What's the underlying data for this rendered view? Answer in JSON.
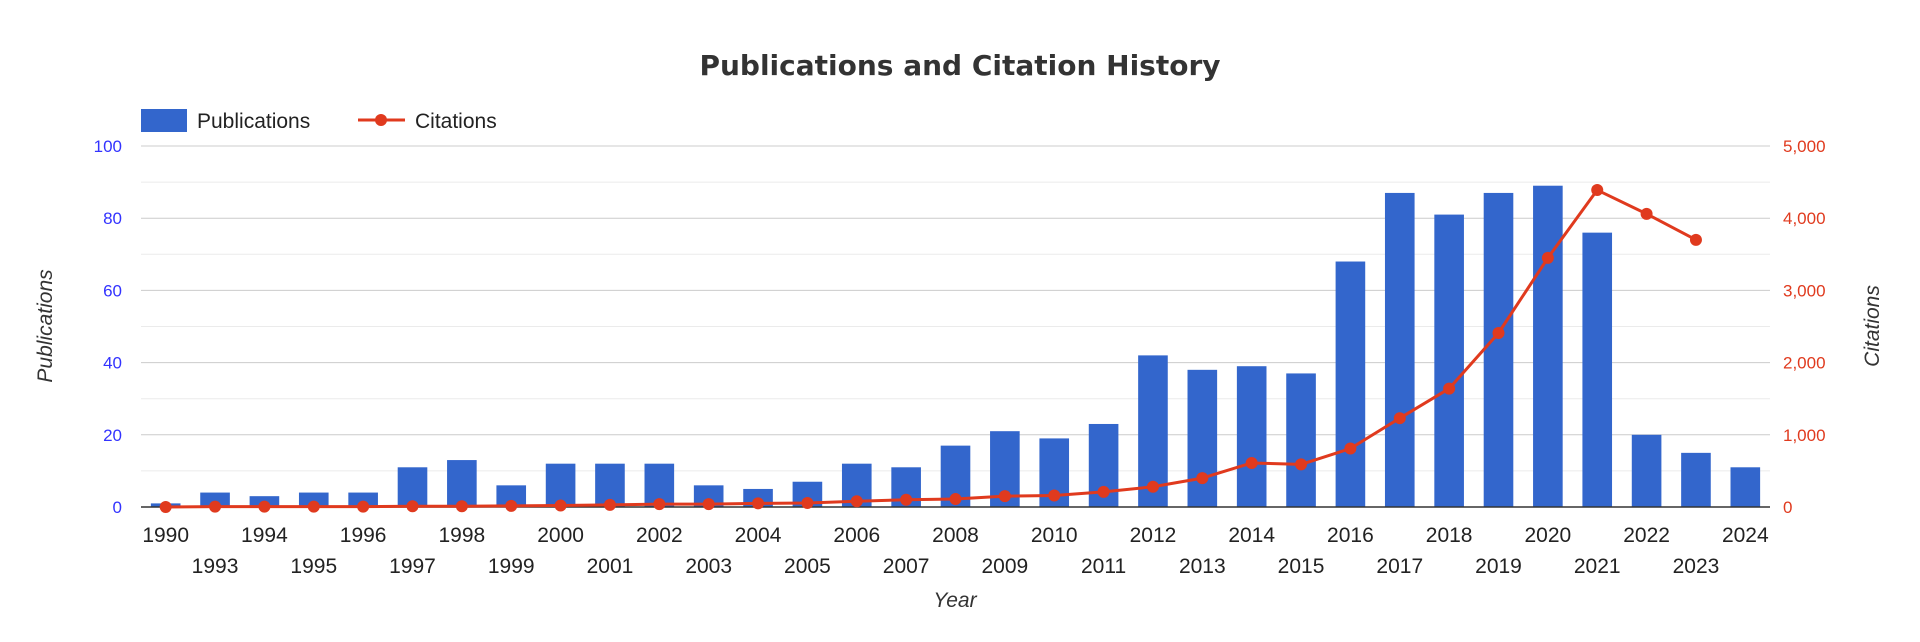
{
  "chart_data": {
    "type": "bar",
    "title": "Publications and Citation History",
    "xlabel": "Year",
    "ylabel": "Publications",
    "y2label": "Citations",
    "categories": [
      "1990",
      "1993",
      "1994",
      "1995",
      "1996",
      "1997",
      "1998",
      "1999",
      "2000",
      "2001",
      "2002",
      "2003",
      "2004",
      "2005",
      "2006",
      "2007",
      "2008",
      "2009",
      "2010",
      "2011",
      "2012",
      "2013",
      "2014",
      "2015",
      "2016",
      "2017",
      "2018",
      "2019",
      "2020",
      "2021",
      "2022",
      "2023",
      "2024"
    ],
    "ylim": [
      0,
      100
    ],
    "y2lim": [
      0,
      5000
    ],
    "yticks": [
      "0",
      "20",
      "40",
      "60",
      "80",
      "100"
    ],
    "y2ticks": [
      "0",
      "1,000",
      "2,000",
      "3,000",
      "4,000",
      "5,000"
    ],
    "grid": true,
    "legend_position": "top-left",
    "series": [
      {
        "name": "Publications",
        "type": "bar",
        "axis": "left",
        "color": "#3366cc",
        "values": [
          1,
          4,
          3,
          4,
          4,
          11,
          13,
          6,
          12,
          12,
          12,
          6,
          5,
          7,
          12,
          11,
          17,
          21,
          19,
          23,
          42,
          38,
          39,
          37,
          68,
          87,
          81,
          87,
          89,
          76,
          20,
          15,
          11
        ]
      },
      {
        "name": "Citations",
        "type": "line",
        "axis": "right",
        "color": "#e03a1e",
        "values": [
          0,
          5,
          5,
          5,
          5,
          10,
          10,
          15,
          20,
          30,
          40,
          40,
          50,
          55,
          80,
          100,
          110,
          150,
          160,
          210,
          280,
          400,
          610,
          590,
          810,
          1230,
          1640,
          2410,
          3450,
          4390,
          4060,
          3700,
          null
        ]
      }
    ]
  }
}
